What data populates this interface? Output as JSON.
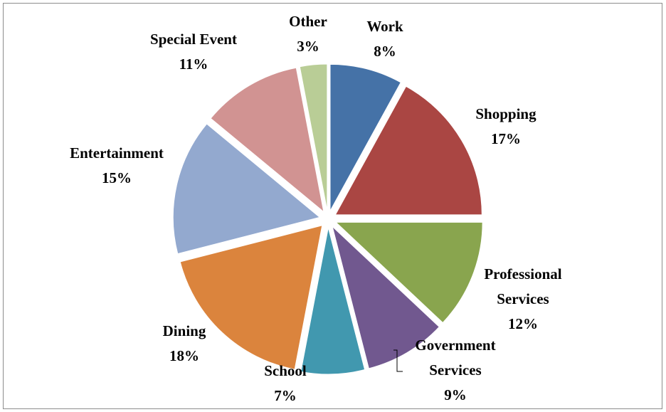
{
  "chart_data": {
    "type": "pie",
    "exploded": true,
    "title": "",
    "slices": [
      {
        "label": "Work",
        "value": 8,
        "pct_label": "8%",
        "color": "#4572A7"
      },
      {
        "label": "Shopping",
        "value": 17,
        "pct_label": "17%",
        "color": "#AA4643"
      },
      {
        "label": "Professional Services",
        "label_lines": [
          "Professional",
          "Services"
        ],
        "value": 12,
        "pct_label": "12%",
        "color": "#89A54E"
      },
      {
        "label": "Government Services",
        "label_lines": [
          "Government",
          "Services"
        ],
        "value": 9,
        "pct_label": "9%",
        "color": "#71588F"
      },
      {
        "label": "School",
        "value": 7,
        "pct_label": "7%",
        "color": "#4198AF"
      },
      {
        "label": "Dining",
        "value": 18,
        "pct_label": "18%",
        "color": "#DB843D"
      },
      {
        "label": "Entertainment",
        "value": 15,
        "pct_label": "15%",
        "color": "#93A9CF"
      },
      {
        "label": "Special Event",
        "value": 11,
        "pct_label": "11%",
        "color": "#D19392"
      },
      {
        "label": "Other",
        "value": 3,
        "pct_label": "3%",
        "color": "#B9CD96"
      }
    ]
  }
}
